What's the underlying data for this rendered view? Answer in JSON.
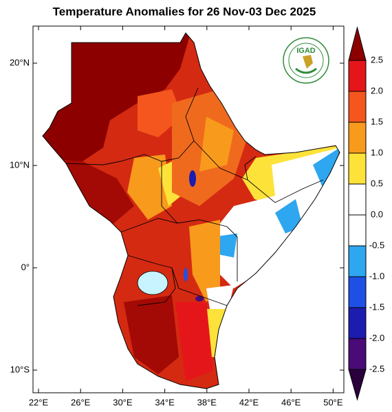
{
  "title": "Temperature Anomalies for 26 Nov-03 Dec 2025",
  "logo": "IGAD",
  "map": {
    "xticks": [
      {
        "value": 22,
        "label": "22°E"
      },
      {
        "value": 26,
        "label": "26°E"
      },
      {
        "value": 30,
        "label": "30°E"
      },
      {
        "value": 34,
        "label": "34°E"
      },
      {
        "value": 38,
        "label": "38°E"
      },
      {
        "value": 42,
        "label": "42°E"
      },
      {
        "value": 46,
        "label": "46°E"
      },
      {
        "value": 50,
        "label": "50°E"
      }
    ],
    "yticks": [
      {
        "value": 20,
        "label": "20°N"
      },
      {
        "value": 10,
        "label": "10°N"
      },
      {
        "value": 0,
        "label": "0°"
      },
      {
        "value": -10,
        "label": "10°S"
      }
    ]
  },
  "colorbar": {
    "levels": [
      -2.5,
      {
        "value": -2,
        "label": "-2.0"
      },
      -1.5,
      {
        "value": -1,
        "label": "-1.0"
      },
      -0.5,
      {
        "value": 0,
        "label": "0.0"
      },
      0.5,
      {
        "value": 1,
        "label": "1.0"
      },
      1.5,
      {
        "value": 2,
        "label": "2.0"
      },
      2.5
    ],
    "colors": [
      "#2a003d",
      "#4a0a78",
      "#1c1cae",
      "#1f50e6",
      "#2ea6f0",
      "#ffffff",
      "#ffffff",
      "#fde23a",
      "#f89a1c",
      "#f4561d",
      "#e5161a",
      "#8c0000"
    ]
  }
}
